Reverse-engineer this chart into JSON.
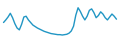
{
  "x": [
    0,
    1,
    2,
    3,
    4,
    5,
    6,
    7,
    8,
    9,
    10,
    11,
    12,
    13,
    14,
    15,
    16,
    17,
    18,
    19,
    20,
    21,
    22,
    23,
    24,
    25,
    26,
    27,
    28,
    29,
    30,
    31,
    32,
    33,
    34,
    35,
    36,
    37,
    38,
    39,
    40,
    41,
    42,
    43,
    44,
    45,
    46,
    47,
    48,
    49,
    50
  ],
  "y": [
    55,
    62,
    70,
    80,
    68,
    52,
    40,
    35,
    50,
    70,
    72,
    62,
    55,
    48,
    44,
    40,
    37,
    34,
    31,
    29,
    27,
    25,
    24,
    23,
    22,
    22,
    21,
    22,
    23,
    26,
    32,
    45,
    75,
    95,
    85,
    72,
    62,
    72,
    88,
    92,
    82,
    68,
    74,
    84,
    78,
    68,
    62,
    70,
    78,
    72,
    64
  ],
  "line_color": "#2196c4",
  "linewidth": 1.0,
  "bg_color": "#ffffff"
}
